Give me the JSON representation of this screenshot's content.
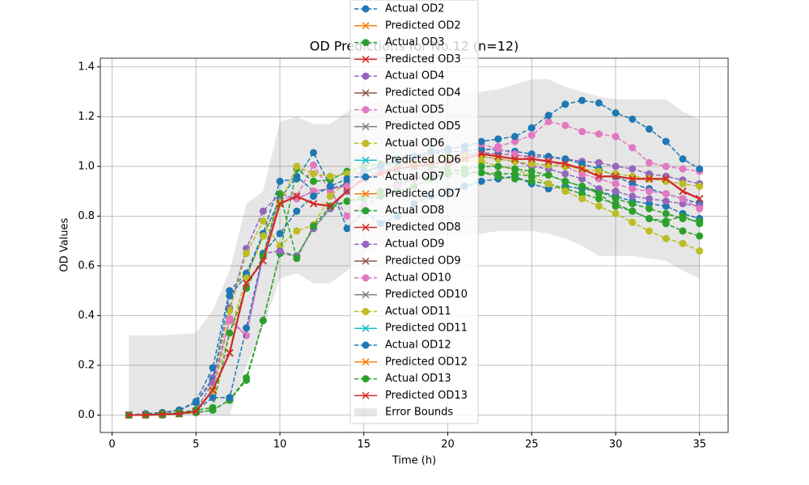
{
  "chart_data": {
    "type": "line",
    "title": "OD Predictions for No.12 (n=12)",
    "x_label": "Time (h)",
    "y_label": "OD Values",
    "x": [
      1,
      2,
      3,
      4,
      5,
      6,
      7,
      8,
      9,
      10,
      11,
      12,
      13,
      14,
      15,
      16,
      17,
      18,
      19,
      20,
      21,
      22,
      23,
      24,
      25,
      26,
      27,
      28,
      29,
      30,
      31,
      32,
      33,
      34,
      35
    ],
    "xlim": [
      -0.7,
      36.7
    ],
    "ylim": [
      -0.07,
      1.435
    ],
    "xticks": [
      0,
      5,
      10,
      15,
      20,
      25,
      30,
      35
    ],
    "yticks": [
      {
        "value": 0,
        "label": "0.0"
      },
      0.2,
      0.4,
      0.6,
      0.8,
      {
        "value": 1,
        "label": "1.0"
      },
      1.2,
      1.4
    ],
    "grid": true,
    "legend": "upper center",
    "error_bounds": {
      "name": "Error Bounds",
      "color": "#808080",
      "upper": [
        0.32,
        0.32,
        0.32,
        0.325,
        0.33,
        0.42,
        0.58,
        0.85,
        0.9,
        1.18,
        1.2,
        1.17,
        1.17,
        1.22,
        1.25,
        1.26,
        1.27,
        1.27,
        1.28,
        1.29,
        1.29,
        1.3,
        1.31,
        1.33,
        1.35,
        1.35,
        1.32,
        1.3,
        1.28,
        1.27,
        1.27,
        1.27,
        1.27,
        1.22,
        1.19
      ],
      "lower": [
        0,
        0,
        0,
        0,
        0,
        0,
        0,
        0.2,
        0.35,
        0.55,
        0.57,
        0.53,
        0.53,
        0.58,
        0.65,
        0.68,
        0.7,
        0.71,
        0.72,
        0.72,
        0.73,
        0.73,
        0.74,
        0.74,
        0.74,
        0.73,
        0.71,
        0.68,
        0.64,
        0.64,
        0.64,
        0.63,
        0.62,
        0.58,
        0.55
      ]
    },
    "series": [
      {
        "name": "Actual OD2",
        "color": "#1f77b4",
        "marker": "o",
        "linestyle": "dashed",
        "values": [
          0,
          0.005,
          0.01,
          0.02,
          0.055,
          0.19,
          0.5,
          0.57,
          0.73,
          0.94,
          0.95,
          1.055,
          0.92,
          0.75,
          0.82,
          0.77,
          0.8,
          0.85,
          0.88,
          0.9,
          0.92,
          0.94,
          0.95,
          0.96,
          0.93,
          0.91,
          0.92,
          0.91,
          0.9,
          0.88,
          0.86,
          0.85,
          0.84,
          0.81,
          0.79
        ]
      },
      {
        "name": "Predicted OD2",
        "color": "#ff7f0e",
        "marker": "x",
        "linestyle": "solid",
        "values": [
          0,
          0,
          0.003,
          0.005,
          0.015,
          0.1,
          0.25,
          0.53,
          0.62,
          0.85,
          0.88,
          0.85,
          0.84,
          0.9,
          0.95,
          0.97,
          0.99,
          1.0,
          1.01,
          1.02,
          1.03,
          1.05,
          1.04,
          1.03,
          1.03,
          1.02,
          1.01,
          0.99,
          0.96,
          0.96,
          0.95,
          0.95,
          0.95,
          0.9,
          0.87
        ]
      },
      {
        "name": "Actual OD3",
        "color": "#2ca02c",
        "marker": "o",
        "linestyle": "dashed",
        "values": [
          0,
          0,
          0,
          0.005,
          0.01,
          0.02,
          0.06,
          0.14,
          0.38,
          0.65,
          0.64,
          0.75,
          0.83,
          0.86,
          0.88,
          0.9,
          0.93,
          0.95,
          0.96,
          0.97,
          0.97,
          0.975,
          0.96,
          0.95,
          0.94,
          0.93,
          0.91,
          0.89,
          0.87,
          0.85,
          0.82,
          0.79,
          0.77,
          0.74,
          0.72
        ]
      },
      {
        "name": "Predicted OD3",
        "color": "#d62728",
        "marker": "x",
        "linestyle": "solid",
        "values": [
          0,
          0,
          0.003,
          0.005,
          0.015,
          0.1,
          0.25,
          0.53,
          0.62,
          0.85,
          0.88,
          0.85,
          0.84,
          0.9,
          0.95,
          0.97,
          0.99,
          1.0,
          1.01,
          1.02,
          1.03,
          1.05,
          1.04,
          1.03,
          1.03,
          1.02,
          1.01,
          0.99,
          0.96,
          0.96,
          0.95,
          0.95,
          0.95,
          0.9,
          0.87
        ]
      },
      {
        "name": "Actual OD4",
        "color": "#9467bd",
        "marker": "o",
        "linestyle": "dashed",
        "values": [
          0,
          0.005,
          0.01,
          0.02,
          0.05,
          0.15,
          0.43,
          0.67,
          0.82,
          0.89,
          0.87,
          0.9,
          0.91,
          0.92,
          0.95,
          0.98,
          1.0,
          1.02,
          1.03,
          1.04,
          1.05,
          1.055,
          1.05,
          1.045,
          1.04,
          1.035,
          1.03,
          1.02,
          1.015,
          1.0,
          0.99,
          0.97,
          0.96,
          0.945,
          0.93
        ]
      },
      {
        "name": "Predicted OD4",
        "color": "#8c564b",
        "marker": "x",
        "linestyle": "solid",
        "values": [
          0,
          0,
          0.003,
          0.005,
          0.015,
          0.1,
          0.25,
          0.53,
          0.62,
          0.85,
          0.88,
          0.85,
          0.84,
          0.9,
          0.95,
          0.97,
          0.99,
          1.0,
          1.01,
          1.02,
          1.03,
          1.05,
          1.04,
          1.03,
          1.03,
          1.02,
          1.01,
          0.99,
          0.96,
          0.96,
          0.95,
          0.95,
          0.95,
          0.9,
          0.87
        ]
      },
      {
        "name": "Actual OD5",
        "color": "#e377c2",
        "marker": "o",
        "linestyle": "dashed",
        "values": [
          0,
          0,
          0.005,
          0.01,
          0.02,
          0.1,
          0.39,
          0.32,
          0.64,
          0.87,
          0.88,
          1.005,
          0.9,
          0.8,
          0.84,
          0.88,
          0.92,
          0.95,
          0.98,
          1.0,
          1.03,
          1.06,
          1.08,
          1.1,
          1.125,
          1.18,
          1.165,
          1.14,
          1.13,
          1.12,
          1.075,
          1.015,
          1.0,
          0.99,
          0.98
        ]
      },
      {
        "name": "Predicted OD5",
        "color": "#7f7f7f",
        "marker": "x",
        "linestyle": "solid",
        "values": [
          0,
          0,
          0.003,
          0.005,
          0.015,
          0.1,
          0.25,
          0.53,
          0.62,
          0.85,
          0.88,
          0.85,
          0.84,
          0.9,
          0.95,
          0.97,
          0.99,
          1.0,
          1.01,
          1.02,
          1.03,
          1.05,
          1.04,
          1.03,
          1.03,
          1.02,
          1.01,
          0.99,
          0.96,
          0.96,
          0.95,
          0.95,
          0.95,
          0.9,
          0.87
        ]
      },
      {
        "name": "Actual OD6",
        "color": "#bcbd22",
        "marker": "o",
        "linestyle": "dashed",
        "values": [
          0,
          0.005,
          0.01,
          0.02,
          0.05,
          0.14,
          0.42,
          0.65,
          0.78,
          0.68,
          0.74,
          0.765,
          0.88,
          0.94,
          0.97,
          0.98,
          0.99,
          1.0,
          1.01,
          1.02,
          1.03,
          1.02,
          1.0,
          0.99,
          0.96,
          0.93,
          0.9,
          0.87,
          0.84,
          0.81,
          0.775,
          0.74,
          0.71,
          0.69,
          0.66
        ]
      },
      {
        "name": "Predicted OD6",
        "color": "#17becf",
        "marker": "x",
        "linestyle": "solid",
        "values": [
          0,
          0,
          0.003,
          0.005,
          0.015,
          0.1,
          0.25,
          0.53,
          0.62,
          0.85,
          0.88,
          0.85,
          0.84,
          0.9,
          0.95,
          0.97,
          0.99,
          1.0,
          1.01,
          1.02,
          1.03,
          1.05,
          1.04,
          1.03,
          1.03,
          1.02,
          1.01,
          0.99,
          0.96,
          0.96,
          0.95,
          0.95,
          0.95,
          0.9,
          0.87
        ]
      },
      {
        "name": "Actual OD7",
        "color": "#1f77b4",
        "marker": "o",
        "linestyle": "dashed",
        "values": [
          0,
          0.005,
          0.01,
          0.02,
          0.05,
          0.14,
          0.48,
          0.56,
          0.72,
          0.87,
          0.96,
          0.9,
          0.91,
          0.93,
          0.97,
          1.0,
          1.03,
          1.04,
          1.05,
          1.06,
          1.06,
          1.07,
          1.065,
          1.06,
          1.05,
          1.04,
          1.03,
          1.01,
          0.99,
          0.96,
          0.93,
          0.91,
          0.89,
          0.87,
          0.85
        ]
      },
      {
        "name": "Predicted OD7",
        "color": "#ff7f0e",
        "marker": "x",
        "linestyle": "solid",
        "values": [
          0,
          0,
          0.003,
          0.005,
          0.015,
          0.1,
          0.25,
          0.53,
          0.62,
          0.85,
          0.88,
          0.85,
          0.84,
          0.9,
          0.95,
          0.97,
          0.99,
          1.0,
          1.01,
          1.02,
          1.03,
          1.05,
          1.04,
          1.03,
          1.03,
          1.02,
          1.01,
          0.99,
          0.96,
          0.96,
          0.95,
          0.95,
          0.95,
          0.9,
          0.87
        ]
      },
      {
        "name": "Actual OD8",
        "color": "#2ca02c",
        "marker": "o",
        "linestyle": "dashed",
        "values": [
          0,
          0,
          0,
          0.005,
          0.01,
          0.02,
          0.06,
          0.15,
          0.38,
          0.65,
          0.99,
          0.94,
          0.945,
          0.98,
          1.0,
          1.01,
          1.02,
          1.0,
          1.0,
          0.99,
          0.98,
          0.975,
          0.97,
          0.97,
          0.96,
          0.965,
          0.94,
          0.92,
          0.9,
          0.87,
          0.85,
          0.83,
          0.81,
          0.79,
          0.78
        ]
      },
      {
        "name": "Predicted OD8",
        "color": "#d62728",
        "marker": "x",
        "linestyle": "solid",
        "values": [
          0,
          0,
          0.003,
          0.005,
          0.015,
          0.1,
          0.25,
          0.53,
          0.62,
          0.85,
          0.88,
          0.85,
          0.84,
          0.9,
          0.95,
          0.97,
          0.99,
          1.0,
          1.01,
          1.02,
          1.03,
          1.05,
          1.04,
          1.03,
          1.03,
          1.02,
          1.01,
          0.99,
          0.96,
          0.96,
          0.95,
          0.95,
          0.95,
          0.9,
          0.87
        ]
      },
      {
        "name": "Actual OD9",
        "color": "#9467bd",
        "marker": "o",
        "linestyle": "dashed",
        "values": [
          0,
          0,
          0.005,
          0.01,
          0.02,
          0.13,
          0.38,
          0.32,
          0.65,
          0.66,
          0.64,
          0.75,
          0.83,
          0.9,
          0.95,
          0.98,
          1.0,
          1.02,
          1.03,
          1.04,
          1.05,
          1.04,
          1.03,
          1.02,
          1.0,
          0.99,
          0.97,
          0.95,
          0.91,
          0.9,
          0.88,
          0.87,
          0.86,
          0.85,
          0.84
        ]
      },
      {
        "name": "Predicted OD9",
        "color": "#8c564b",
        "marker": "x",
        "linestyle": "solid",
        "values": [
          0,
          0,
          0.003,
          0.005,
          0.015,
          0.1,
          0.25,
          0.53,
          0.62,
          0.85,
          0.88,
          0.85,
          0.84,
          0.9,
          0.95,
          0.97,
          0.99,
          1.0,
          1.01,
          1.02,
          1.03,
          1.05,
          1.04,
          1.03,
          1.03,
          1.02,
          1.01,
          0.99,
          0.96,
          0.96,
          0.95,
          0.95,
          0.95,
          0.9,
          0.87
        ]
      },
      {
        "name": "Actual OD10",
        "color": "#e377c2",
        "marker": "o",
        "linestyle": "dashed",
        "values": [
          0,
          0,
          0.005,
          0.01,
          0.02,
          0.1,
          0.38,
          0.32,
          0.64,
          0.86,
          0.87,
          0.9,
          0.91,
          0.92,
          0.95,
          0.98,
          1.0,
          1.03,
          1.05,
          1.07,
          1.08,
          1.09,
          1.07,
          1.05,
          1.03,
          1.02,
          1.0,
          0.97,
          0.95,
          0.93,
          0.91,
          0.9,
          0.89,
          0.87,
          0.83
        ]
      },
      {
        "name": "Predicted OD10",
        "color": "#7f7f7f",
        "marker": "x",
        "linestyle": "solid",
        "values": [
          0,
          0,
          0.003,
          0.005,
          0.015,
          0.1,
          0.25,
          0.53,
          0.62,
          0.85,
          0.88,
          0.85,
          0.84,
          0.9,
          0.95,
          0.97,
          0.99,
          1.0,
          1.01,
          1.02,
          1.03,
          1.05,
          1.04,
          1.03,
          1.03,
          1.02,
          1.01,
          0.99,
          0.96,
          0.96,
          0.95,
          0.95,
          0.95,
          0.9,
          0.87
        ]
      },
      {
        "name": "Actual OD11",
        "color": "#bcbd22",
        "marker": "o",
        "linestyle": "dashed",
        "values": [
          0,
          0,
          0.005,
          0.01,
          0.02,
          0.1,
          0.33,
          0.55,
          0.72,
          0.85,
          1.0,
          0.97,
          0.96,
          0.97,
          0.98,
          1.0,
          1.01,
          1.02,
          1.03,
          1.04,
          1.04,
          1.04,
          1.03,
          1.02,
          1.01,
          1.005,
          1.0,
          0.99,
          0.98,
          0.97,
          0.96,
          0.95,
          0.94,
          0.93,
          0.92
        ]
      },
      {
        "name": "Predicted OD11",
        "color": "#17becf",
        "marker": "x",
        "linestyle": "solid",
        "values": [
          0,
          0,
          0.003,
          0.005,
          0.015,
          0.1,
          0.25,
          0.53,
          0.62,
          0.85,
          0.88,
          0.85,
          0.84,
          0.9,
          0.95,
          0.97,
          0.99,
          1.0,
          1.01,
          1.02,
          1.03,
          1.05,
          1.04,
          1.03,
          1.03,
          1.02,
          1.01,
          0.99,
          0.96,
          0.96,
          0.95,
          0.95,
          0.95,
          0.9,
          0.87
        ]
      },
      {
        "name": "Actual OD12",
        "color": "#1f77b4",
        "marker": "o",
        "linestyle": "dashed",
        "values": [
          0,
          0,
          0.005,
          0.01,
          0.02,
          0.07,
          0.07,
          0.35,
          0.65,
          0.73,
          0.82,
          0.88,
          0.92,
          0.95,
          0.98,
          1.0,
          1.02,
          1.04,
          1.06,
          1.07,
          1.08,
          1.1,
          1.11,
          1.12,
          1.155,
          1.205,
          1.25,
          1.265,
          1.255,
          1.215,
          1.19,
          1.15,
          1.1,
          1.03,
          0.99
        ]
      },
      {
        "name": "Predicted OD12",
        "color": "#ff7f0e",
        "marker": "x",
        "linestyle": "solid",
        "values": [
          0,
          0,
          0.003,
          0.005,
          0.015,
          0.1,
          0.25,
          0.53,
          0.62,
          0.85,
          0.88,
          0.85,
          0.84,
          0.9,
          0.95,
          0.97,
          0.99,
          1.0,
          1.01,
          1.02,
          1.03,
          1.05,
          1.04,
          1.03,
          1.03,
          1.02,
          1.01,
          0.99,
          0.96,
          0.96,
          0.95,
          0.95,
          0.95,
          0.9,
          0.87
        ]
      },
      {
        "name": "Actual OD13",
        "color": "#2ca02c",
        "marker": "o",
        "linestyle": "dashed",
        "values": [
          0,
          0,
          0.005,
          0.01,
          0.02,
          0.03,
          0.33,
          0.51,
          0.64,
          0.89,
          0.63,
          0.76,
          0.84,
          0.86,
          0.87,
          0.88,
          0.9,
          0.92,
          0.95,
          0.97,
          0.99,
          1.0,
          1.0,
          0.99,
          0.98,
          0.965,
          0.94,
          0.92,
          0.89,
          0.84,
          0.82,
          0.79,
          0.78,
          0.8,
          0.77
        ]
      },
      {
        "name": "Predicted OD13",
        "color": "#d62728",
        "marker": "x",
        "linestyle": "solid",
        "values": [
          0,
          0,
          0.003,
          0.005,
          0.015,
          0.1,
          0.25,
          0.53,
          0.62,
          0.85,
          0.88,
          0.85,
          0.84,
          0.9,
          0.95,
          0.97,
          0.99,
          1.0,
          1.01,
          1.02,
          1.03,
          1.05,
          1.04,
          1.03,
          1.03,
          1.02,
          1.01,
          0.99,
          0.96,
          0.96,
          0.95,
          0.95,
          0.95,
          0.9,
          0.87
        ]
      }
    ]
  }
}
